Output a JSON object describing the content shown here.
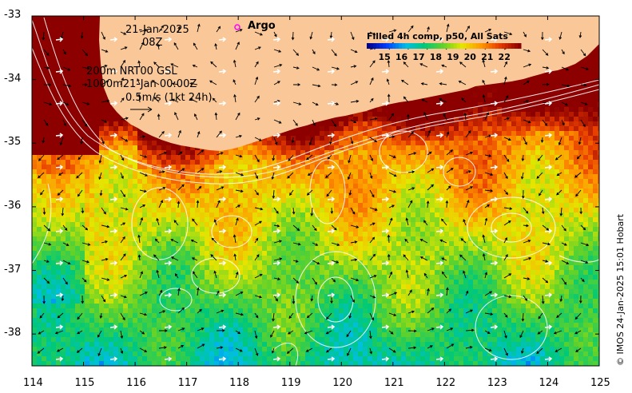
{
  "map": {
    "lon_ticks": [
      "114",
      "115",
      "116",
      "117",
      "118",
      "119",
      "120",
      "121",
      "122",
      "123",
      "124",
      "125"
    ],
    "lat_ticks": [
      "-33",
      "-34",
      "-35",
      "-36",
      "-37",
      "-38"
    ],
    "lon_range": [
      114,
      125
    ],
    "lat_range": [
      -38.5,
      -33
    ]
  },
  "annotations": {
    "date": "21-Jan-2025",
    "time": "08Z",
    "contour_line1": "200m  NRT00 GSL",
    "contour_line2": "1000m21-Jan 00:00Z",
    "vector_scale": "0.5m/s (1kt 24h)",
    "argo_label": "Argo"
  },
  "legend": {
    "title": "Filled 4h comp, p50, All Sats",
    "ticks": [
      "15",
      "16",
      "17",
      "18",
      "19",
      "20",
      "21",
      "22"
    ],
    "sst_range": [
      14,
      23
    ]
  },
  "credit": "© IMOS 24-Jan-2025 15:01 Hobart",
  "colors": {
    "land": "#fac898",
    "argo": "#ff00ff"
  }
}
